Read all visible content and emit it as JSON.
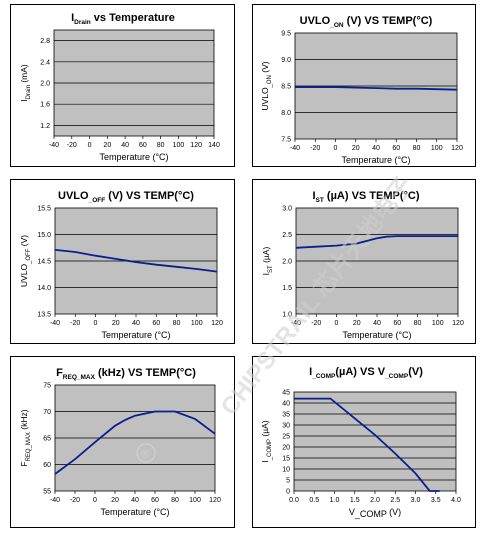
{
  "colors": {
    "plot_background": "#c0c0c0",
    "series_line": "#0a1f8f",
    "grid": "#000000"
  },
  "watermark": {
    "text": "CHIPSTRAIL 芯片天地电子",
    "mark": "®"
  },
  "chart_data": [
    {
      "id": "idrain",
      "type": "line",
      "title_main": "I",
      "title_sub": "Drain",
      "title_rest": " vs Temperature",
      "xlabel": "Temperature  (°C)",
      "ylabel_main": "I",
      "ylabel_sub": "Drain",
      "ylabel_rest": " (mA)",
      "xlim": [
        -40,
        140
      ],
      "ylim": [
        1.0,
        3.0
      ],
      "xticks": [
        "-40",
        "-20",
        "0",
        "20",
        "40",
        "60",
        "80",
        "100",
        "120",
        "140"
      ],
      "xtick_values": [
        -40,
        -20,
        0,
        20,
        40,
        60,
        80,
        100,
        120,
        140
      ],
      "yticks": [
        "1.2",
        "1.6",
        "2.0",
        "2.4",
        "2.8"
      ],
      "ytick_values": [
        1.2,
        1.6,
        2.0,
        2.4,
        2.8
      ],
      "grid": true,
      "series": []
    },
    {
      "id": "uvlo_on",
      "type": "line",
      "title_main": "UVLO",
      "title_sub": "_ON",
      "title_rest": " (V) VS TEMP(°C)",
      "xlabel": "Temperature  (°C)",
      "ylabel_main": "UVLO",
      "ylabel_sub": "_ON",
      "ylabel_rest": " (V)",
      "xlim": [
        -40,
        120
      ],
      "ylim": [
        7.5,
        9.5
      ],
      "xticks": [
        "-40",
        "-20",
        "0",
        "20",
        "40",
        "60",
        "80",
        "100",
        "120"
      ],
      "xtick_values": [
        -40,
        -20,
        0,
        20,
        40,
        60,
        80,
        100,
        120
      ],
      "yticks": [
        "7.5",
        "8.0",
        "8.5",
        "9.0",
        "9.5"
      ],
      "ytick_values": [
        7.5,
        8.0,
        8.5,
        9.0,
        9.5
      ],
      "grid": true,
      "series": [
        {
          "x": [
            -40,
            -20,
            0,
            20,
            40,
            60,
            80,
            100,
            120
          ],
          "y": [
            8.48,
            8.48,
            8.48,
            8.47,
            8.46,
            8.45,
            8.45,
            8.44,
            8.43
          ]
        }
      ]
    },
    {
      "id": "uvlo_off",
      "type": "line",
      "title_main": "UVLO",
      "title_sub": "_OFF",
      "title_rest": " (V) VS TEMP(°C)",
      "xlabel": "Temperature  (°C)",
      "ylabel_main": "UVLO",
      "ylabel_sub": "_OFF",
      "ylabel_rest": " (V)",
      "xlim": [
        -40,
        120
      ],
      "ylim": [
        13.5,
        15.5
      ],
      "xticks": [
        "-40",
        "-20",
        "0",
        "20",
        "40",
        "60",
        "80",
        "100",
        "120"
      ],
      "xtick_values": [
        -40,
        -20,
        0,
        20,
        40,
        60,
        80,
        100,
        120
      ],
      "yticks": [
        "13.5",
        "14.0",
        "14.5",
        "15.0",
        "15.5"
      ],
      "ytick_values": [
        13.5,
        14.0,
        14.5,
        15.0,
        15.5
      ],
      "grid": true,
      "series": [
        {
          "x": [
            -40,
            -20,
            0,
            20,
            40,
            60,
            80,
            100,
            120
          ],
          "y": [
            14.71,
            14.67,
            14.6,
            14.54,
            14.48,
            14.43,
            14.39,
            14.35,
            14.3
          ]
        }
      ]
    },
    {
      "id": "ist",
      "type": "line",
      "title_main": "I",
      "title_sub": "ST",
      "title_rest": " (µA) VS TEMP(°C)",
      "xlabel": "Temperature  (°C)",
      "ylabel_main": "I",
      "ylabel_sub": "ST",
      "ylabel_rest": " (µA)",
      "xlim": [
        -40,
        120
      ],
      "ylim": [
        1.0,
        3.0
      ],
      "xticks": [
        "-40",
        "-20",
        "0",
        "20",
        "40",
        "60",
        "80",
        "100",
        "120"
      ],
      "xtick_values": [
        -40,
        -20,
        0,
        20,
        40,
        60,
        80,
        100,
        120
      ],
      "yticks": [
        "1.0",
        "1.5",
        "2.0",
        "2.5",
        "3.0"
      ],
      "ytick_values": [
        1.0,
        1.5,
        2.0,
        2.5,
        3.0
      ],
      "grid": true,
      "series": [
        {
          "x": [
            -40,
            -20,
            0,
            20,
            40,
            50,
            60,
            80,
            100,
            120
          ],
          "y": [
            2.25,
            2.27,
            2.29,
            2.33,
            2.43,
            2.46,
            2.47,
            2.47,
            2.47,
            2.47
          ]
        }
      ]
    },
    {
      "id": "freq_max",
      "type": "line",
      "title_main": "F",
      "title_sub": "REQ_MAX",
      "title_rest": " (kHz) VS TEMP(°C)",
      "xlabel": "Temperature  (°C)",
      "ylabel_main": "F",
      "ylabel_sub": "REQ_MAX",
      "ylabel_rest": " (kHz)",
      "xlim": [
        -40,
        120
      ],
      "ylim": [
        55,
        75
      ],
      "xticks": [
        "-40",
        "-20",
        "0",
        "20",
        "40",
        "60",
        "80",
        "100",
        "120"
      ],
      "xtick_values": [
        -40,
        -20,
        0,
        20,
        40,
        60,
        80,
        100,
        120
      ],
      "yticks": [
        "55",
        "60",
        "65",
        "70",
        "75"
      ],
      "ytick_values": [
        55,
        60,
        65,
        70,
        75
      ],
      "grid": true,
      "series": [
        {
          "x": [
            -40,
            -20,
            0,
            20,
            30,
            40,
            60,
            80,
            100,
            120
          ],
          "y": [
            58.2,
            61.0,
            64.2,
            67.3,
            68.4,
            69.2,
            70.0,
            70.0,
            68.6,
            65.8
          ]
        }
      ]
    },
    {
      "id": "icomp",
      "type": "line",
      "title_main": "I",
      "title_sub": "_COMP",
      "title_rest": "(µA)   VS   V",
      "title_sub2": "_COMP",
      "title_rest2": "(V)",
      "xlabel_main": "V",
      "xlabel_sub": "_COMP",
      "xlabel_rest": " (V)",
      "ylabel_main": "I",
      "ylabel_sub": "_COMP",
      "ylabel_rest": " (µA)",
      "xlim": [
        0.0,
        4.0
      ],
      "ylim": [
        0,
        45
      ],
      "xticks": [
        "0.0",
        "0.5",
        "1.0",
        "1.5",
        "2.0",
        "2.5",
        "3.0",
        "3.5",
        "4.0"
      ],
      "xtick_values": [
        0.0,
        0.5,
        1.0,
        1.5,
        2.0,
        2.5,
        3.0,
        3.5,
        4.0
      ],
      "yticks": [
        "0",
        "5",
        "10",
        "15",
        "20",
        "25",
        "30",
        "35",
        "40",
        "45"
      ],
      "ytick_values": [
        0,
        5,
        10,
        15,
        20,
        25,
        30,
        35,
        40,
        45
      ],
      "grid": true,
      "series": [
        {
          "x": [
            0.0,
            0.9,
            1.5,
            2.0,
            2.5,
            3.0,
            3.35,
            3.6
          ],
          "y": [
            42,
            42,
            33,
            25.5,
            17,
            8,
            0,
            0
          ]
        }
      ]
    }
  ]
}
